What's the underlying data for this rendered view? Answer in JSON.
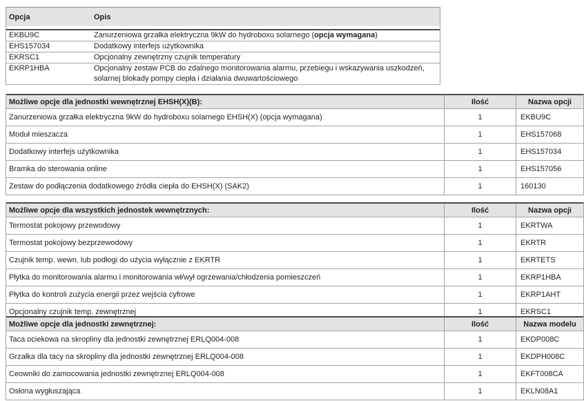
{
  "colors": {
    "header_bg": "#e3e3e3",
    "border_light": "#a3a3a3",
    "border_dark": "#4a4a4a",
    "text": "#1f1f1f"
  },
  "legend": {
    "col_option": "Opcja",
    "col_description": "Opis",
    "rows": [
      {
        "code": "EKBU9C",
        "desc_prefix": "Zanurzeniowa grzałka elektryczna 9kW do hydroboxu solarnego (",
        "desc_bold": "opcja wymagana",
        "desc_suffix": ")"
      },
      {
        "code": "EHS157034",
        "desc": "Dodatkowy interfejs użytkownika"
      },
      {
        "code": "EKRSC1",
        "desc": "Opcjonalny zewnętrzny czujnik temperatury"
      },
      {
        "code": "EKRP1HBA",
        "desc": "Opcjonalny zestaw PCB do zdalnego monitorowania alarmu, przebiegu i wskazywania uszkodzeń, solarnej blokady pompy ciepła i działania dwuwartościowego"
      }
    ]
  },
  "indoor_unit_options": {
    "title": "Możliwe opcje dla jednostki wewnętrznej EHSH(X)(B):",
    "col_qty": "Ilość",
    "col_name": "Nazwa opcji",
    "rows": [
      {
        "desc": "Zanurzeniowa grzałka elektryczna 9kW do hydroboxu solarnego EHSH(X) (opcja wymagana)",
        "qty": "1",
        "name": "EKBU9C"
      },
      {
        "desc": "Moduł mieszacza",
        "qty": "1",
        "name": "EHS157068"
      },
      {
        "desc": "Dodatkowy interfejs użytkownika",
        "qty": "1",
        "name": "EHS157034"
      },
      {
        "desc": "Bramka do sterowania online",
        "qty": "1",
        "name": "EHS157056"
      },
      {
        "desc": "Zestaw do podłączenia dodatkowego źródła ciepła do EHSH(X) (SAK2)",
        "qty": "1",
        "name": "160130"
      }
    ]
  },
  "all_indoor_options": {
    "title": "Możliwe opcje dla wszystkich jednostek wewnętrznych:",
    "col_qty": "Ilość",
    "col_name": "Nazwa opcji",
    "rows": [
      {
        "desc": "Termostat pokojowy przewodowy",
        "qty": "1",
        "name": "EKRTWA"
      },
      {
        "desc": "Termostat pokojowy bezprzewodowy",
        "qty": "1",
        "name": "EKRTR"
      },
      {
        "desc": "Czujnik temp. wewn. lub podłogi do użycia wyłącznie z EKRTR",
        "qty": "1",
        "name": "EKRTETS"
      },
      {
        "desc": "Płytka do monitorowania alarmu i monitorowania wł/wył ogrzewania/chłodzenia pomieszczeń",
        "qty": "1",
        "name": "EKRP1HBA"
      },
      {
        "desc": "Płytka do kontroli zużycia energii przez wejścia cyfrowe",
        "qty": "1",
        "name": "EKRP1AHT"
      },
      {
        "desc": "Opcjonalny czujnik temp. zewnętrznej",
        "qty": "1",
        "name": "EKRSC1"
      }
    ]
  },
  "outdoor_options": {
    "title": "Możliwe opcje dla jednostki zewnętrznej:",
    "col_qty": "Ilość",
    "col_name": "Nazwa modelu",
    "rows": [
      {
        "desc": "Taca ociekowa na skropliny dla jednostki zewnętrznej ERLQ004-008",
        "qty": "1",
        "name": "EKDP008C"
      },
      {
        "desc": "Grzałka dla tacy na skropliny dla jednostki zewnętrznej ERLQ004-008",
        "qty": "1",
        "name": "EKDPH008C"
      },
      {
        "desc": "Ceowniki do zamocowania jednostki zewnętrznej ERLQ004-008",
        "qty": "1",
        "name": "EKFT008CA"
      },
      {
        "desc": "Osłona wygłuszająca",
        "qty": "1",
        "name": "EKLN08A1"
      }
    ]
  }
}
